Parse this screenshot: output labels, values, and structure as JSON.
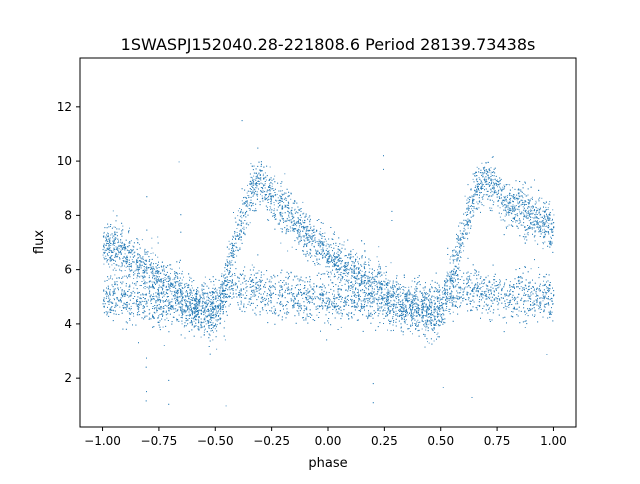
{
  "chart_data": {
    "type": "scatter",
    "title": "1SWASPJ152040.28-221808.6 Period 28139.73438s",
    "xlabel": "phase",
    "ylabel": "flux",
    "xlim": [
      -1.1,
      1.1
    ],
    "ylim": [
      0.2,
      13.8
    ],
    "x_ticks": [
      -1.0,
      -0.75,
      -0.5,
      -0.25,
      0.0,
      0.25,
      0.5,
      0.75,
      1.0
    ],
    "x_tick_labels": [
      "−1.00",
      "−0.75",
      "−0.50",
      "−0.25",
      "0.00",
      "0.25",
      "0.50",
      "0.75",
      "1.00"
    ],
    "y_ticks": [
      2,
      4,
      6,
      8,
      10,
      12
    ],
    "y_tick_labels": [
      "2",
      "4",
      "6",
      "8",
      "10",
      "12"
    ],
    "grid": false,
    "marker_color": "#1f77b4",
    "x_range_of_points": [
      -1.0,
      1.0
    ],
    "series": [
      {
        "x": [
          -1.0,
          -0.9,
          -0.8,
          -0.7,
          -0.6,
          -0.55,
          -0.5,
          -0.45,
          -0.4,
          -0.35,
          -0.3,
          -0.25,
          -0.2,
          -0.1,
          0.0,
          0.1,
          0.2,
          0.3,
          0.4,
          0.45,
          0.5,
          0.55,
          0.6,
          0.65,
          0.7,
          0.75,
          0.8,
          0.9,
          1.0
        ],
        "y": [
          7.0,
          6.6,
          6.0,
          5.5,
          4.9,
          4.4,
          4.3,
          5.8,
          7.4,
          8.8,
          9.3,
          8.7,
          8.2,
          7.3,
          6.6,
          6.0,
          5.5,
          5.0,
          4.5,
          4.3,
          4.4,
          6.0,
          7.5,
          8.8,
          9.4,
          8.9,
          8.4,
          8.0,
          7.5
        ]
      },
      {
        "x": [
          -1.0,
          -0.8,
          -0.6,
          -0.4,
          -0.2,
          0.0,
          0.2,
          0.4,
          0.6,
          0.8,
          1.0
        ],
        "y": [
          5.0,
          4.8,
          4.5,
          5.4,
          5.0,
          4.9,
          4.8,
          4.7,
          5.3,
          5.0,
          5.0
        ]
      }
    ]
  }
}
